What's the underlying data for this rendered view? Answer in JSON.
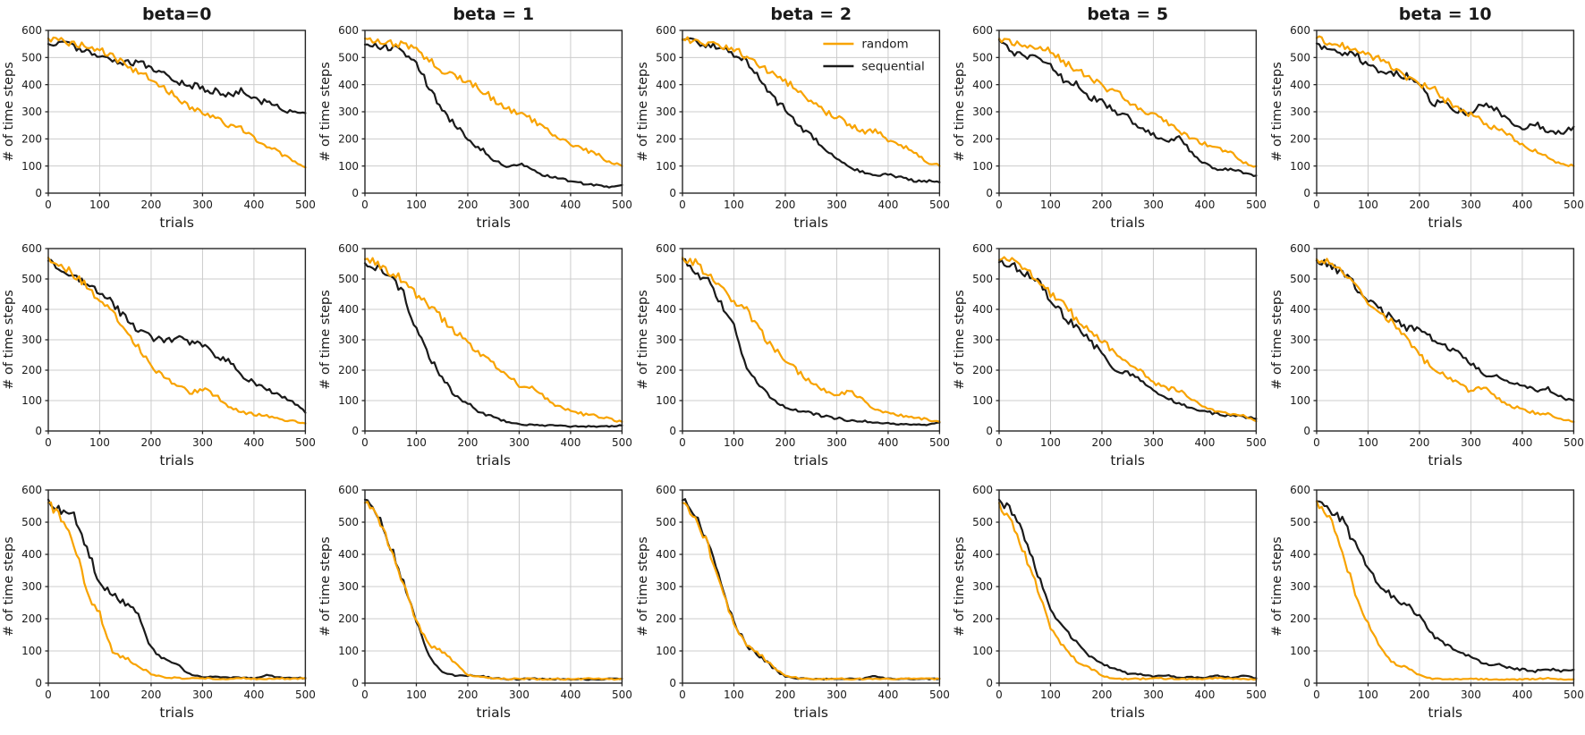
{
  "figure": {
    "column_titles": [
      "beta=0",
      "beta = 1",
      "beta = 2",
      "beta = 5",
      "beta = 10"
    ],
    "rows": 3,
    "cols": 5,
    "background": "#ffffff"
  },
  "axes": {
    "xlabel": "trials",
    "ylabel": "# of time steps",
    "xticks": [
      0,
      100,
      200,
      300,
      400,
      500
    ],
    "yticks": [
      0,
      100,
      200,
      300,
      400,
      500,
      600
    ],
    "xlim": [
      0,
      500
    ],
    "ylim": [
      0,
      600
    ],
    "grid": true,
    "grid_color": "#cccccc",
    "spine_color": "#262626"
  },
  "legend": {
    "chart_index": 2,
    "position": "top-right inside subplot (row 1, col 3)",
    "entries": [
      {
        "label": "random",
        "color": "#F8A300"
      },
      {
        "label": "sequential",
        "color": "#1a1a1a"
      }
    ]
  },
  "chart_data": {
    "type": "line",
    "x": [
      0,
      25,
      50,
      75,
      100,
      125,
      150,
      175,
      200,
      225,
      250,
      275,
      300,
      325,
      350,
      375,
      400,
      425,
      450,
      475,
      500
    ],
    "subplots": [
      {
        "row": 0,
        "col": 0,
        "column_title": "beta=0",
        "series": {
          "random": [
            570,
            560,
            550,
            540,
            532,
            505,
            470,
            445,
            420,
            385,
            355,
            315,
            300,
            280,
            250,
            238,
            205,
            172,
            150,
            118,
            95
          ],
          "sequential": [
            550,
            555,
            540,
            522,
            500,
            490,
            478,
            480,
            462,
            445,
            415,
            400,
            385,
            375,
            362,
            382,
            348,
            335,
            315,
            300,
            295
          ]
        }
      },
      {
        "row": 0,
        "col": 1,
        "column_title": "beta = 1",
        "series": {
          "random": [
            570,
            562,
            555,
            545,
            527,
            492,
            455,
            430,
            405,
            385,
            345,
            312,
            295,
            270,
            235,
            210,
            178,
            160,
            145,
            115,
            100
          ],
          "sequential": [
            548,
            540,
            538,
            520,
            480,
            390,
            300,
            255,
            195,
            165,
            125,
            95,
            110,
            85,
            65,
            55,
            45,
            35,
            30,
            22,
            30
          ]
        }
      },
      {
        "row": 0,
        "col": 2,
        "column_title": "beta = 2",
        "series": {
          "random": [
            568,
            560,
            552,
            545,
            530,
            505,
            470,
            440,
            415,
            372,
            340,
            300,
            282,
            252,
            225,
            230,
            195,
            175,
            155,
            115,
            100
          ],
          "sequential": [
            565,
            555,
            545,
            532,
            515,
            490,
            420,
            350,
            310,
            245,
            215,
            165,
            125,
            95,
            78,
            65,
            68,
            58,
            45,
            45,
            40
          ]
        }
      },
      {
        "row": 0,
        "col": 3,
        "column_title": "beta = 5",
        "series": {
          "random": [
            570,
            560,
            545,
            530,
            525,
            485,
            455,
            425,
            395,
            375,
            340,
            305,
            290,
            265,
            230,
            200,
            180,
            165,
            150,
            115,
            100
          ],
          "sequential": [
            565,
            520,
            510,
            495,
            470,
            420,
            400,
            355,
            335,
            300,
            280,
            240,
            215,
            185,
            205,
            150,
            110,
            85,
            88,
            75,
            65
          ]
        }
      },
      {
        "row": 0,
        "col": 4,
        "column_title": "beta = 10",
        "series": {
          "random": [
            572,
            555,
            545,
            520,
            512,
            490,
            460,
            430,
            400,
            390,
            345,
            310,
            290,
            262,
            235,
            215,
            175,
            155,
            130,
            110,
            100
          ],
          "sequential": [
            552,
            528,
            508,
            518,
            462,
            452,
            445,
            430,
            398,
            330,
            340,
            302,
            295,
            330,
            308,
            262,
            232,
            258,
            222,
            222,
            245
          ]
        }
      },
      {
        "row": 1,
        "col": 0,
        "column_title": "beta=0",
        "series": {
          "random": [
            570,
            552,
            510,
            478,
            430,
            388,
            330,
            278,
            215,
            175,
            155,
            125,
            138,
            118,
            80,
            62,
            55,
            50,
            40,
            32,
            25
          ],
          "sequential": [
            560,
            520,
            505,
            480,
            455,
            420,
            370,
            330,
            305,
            300,
            305,
            290,
            285,
            250,
            230,
            185,
            160,
            135,
            120,
            95,
            60
          ]
        }
      },
      {
        "row": 1,
        "col": 1,
        "column_title": "beta = 1",
        "series": {
          "random": [
            565,
            552,
            520,
            498,
            445,
            415,
            368,
            328,
            288,
            252,
            222,
            185,
            150,
            142,
            112,
            80,
            68,
            55,
            50,
            40,
            30
          ],
          "sequential": [
            552,
            535,
            510,
            455,
            330,
            245,
            175,
            115,
            90,
            60,
            45,
            30,
            22,
            20,
            18,
            18,
            15,
            15,
            15,
            15,
            18
          ]
        }
      },
      {
        "row": 1,
        "col": 2,
        "column_title": "beta = 2",
        "series": {
          "random": [
            570,
            555,
            510,
            470,
            430,
            395,
            330,
            275,
            235,
            195,
            160,
            135,
            115,
            135,
            105,
            70,
            58,
            50,
            45,
            38,
            30
          ],
          "sequential": [
            565,
            515,
            495,
            415,
            340,
            210,
            150,
            105,
            80,
            68,
            58,
            48,
            42,
            35,
            32,
            28,
            25,
            22,
            22,
            20,
            28
          ]
        }
      },
      {
        "row": 1,
        "col": 3,
        "column_title": "beta = 5",
        "series": {
          "random": [
            562,
            568,
            525,
            505,
            448,
            425,
            365,
            330,
            300,
            255,
            225,
            195,
            160,
            140,
            135,
            105,
            80,
            62,
            55,
            50,
            32
          ],
          "sequential": [
            555,
            545,
            520,
            492,
            430,
            382,
            340,
            298,
            258,
            202,
            195,
            165,
            130,
            110,
            90,
            76,
            66,
            55,
            50,
            46,
            40
          ]
        }
      },
      {
        "row": 1,
        "col": 4,
        "column_title": "beta = 10",
        "series": {
          "random": [
            565,
            558,
            520,
            480,
            420,
            390,
            350,
            300,
            250,
            205,
            185,
            155,
            130,
            145,
            110,
            85,
            70,
            60,
            55,
            40,
            30
          ],
          "sequential": [
            560,
            550,
            515,
            480,
            425,
            395,
            370,
            340,
            330,
            300,
            280,
            255,
            220,
            185,
            180,
            165,
            150,
            135,
            140,
            110,
            100
          ]
        }
      },
      {
        "row": 2,
        "col": 0,
        "column_title": "beta=0",
        "series": {
          "random": [
            560,
            510,
            435,
            280,
            215,
            95,
            78,
            55,
            28,
            18,
            16,
            14,
            15,
            14,
            13,
            16,
            13,
            14,
            15,
            13,
            14
          ],
          "sequential": [
            570,
            532,
            522,
            420,
            308,
            275,
            248,
            218,
            108,
            75,
            58,
            28,
            20,
            20,
            17,
            18,
            15,
            26,
            17,
            15,
            16
          ]
        }
      },
      {
        "row": 2,
        "col": 1,
        "column_title": "beta = 1",
        "series": {
          "random": [
            560,
            515,
            420,
            310,
            195,
            120,
            100,
            65,
            25,
            20,
            15,
            13,
            14,
            13,
            12,
            13,
            12,
            13,
            15,
            12,
            13
          ],
          "sequential": [
            570,
            525,
            425,
            315,
            190,
            85,
            32,
            24,
            24,
            22,
            16,
            13,
            12,
            14,
            12,
            13,
            12,
            12,
            12,
            13,
            14
          ]
        }
      },
      {
        "row": 2,
        "col": 2,
        "column_title": "beta = 2",
        "series": {
          "random": [
            560,
            520,
            425,
            300,
            185,
            120,
            90,
            55,
            22,
            16,
            14,
            13,
            14,
            13,
            13,
            13,
            12,
            13,
            14,
            13,
            13
          ],
          "sequential": [
            568,
            525,
            430,
            305,
            190,
            115,
            85,
            50,
            20,
            15,
            14,
            13,
            14,
            13,
            13,
            22,
            14,
            13,
            13,
            13,
            14
          ]
        }
      },
      {
        "row": 2,
        "col": 3,
        "column_title": "beta = 5",
        "series": {
          "random": [
            560,
            495,
            405,
            290,
            170,
            115,
            70,
            50,
            22,
            14,
            13,
            13,
            16,
            14,
            13,
            12,
            13,
            16,
            14,
            13,
            12
          ],
          "sequential": [
            570,
            535,
            450,
            335,
            235,
            170,
            125,
            88,
            60,
            42,
            30,
            28,
            20,
            25,
            18,
            18,
            17,
            23,
            17,
            24,
            15
          ]
        }
      },
      {
        "row": 2,
        "col": 4,
        "column_title": "beta = 10",
        "series": {
          "random": [
            565,
            520,
            410,
            275,
            185,
            105,
            62,
            48,
            25,
            14,
            12,
            12,
            13,
            12,
            12,
            11,
            12,
            12,
            16,
            12,
            12
          ],
          "sequential": [
            565,
            540,
            505,
            430,
            350,
            305,
            268,
            245,
            210,
            150,
            120,
            95,
            80,
            62,
            58,
            48,
            42,
            36,
            44,
            38,
            42
          ]
        }
      }
    ]
  }
}
